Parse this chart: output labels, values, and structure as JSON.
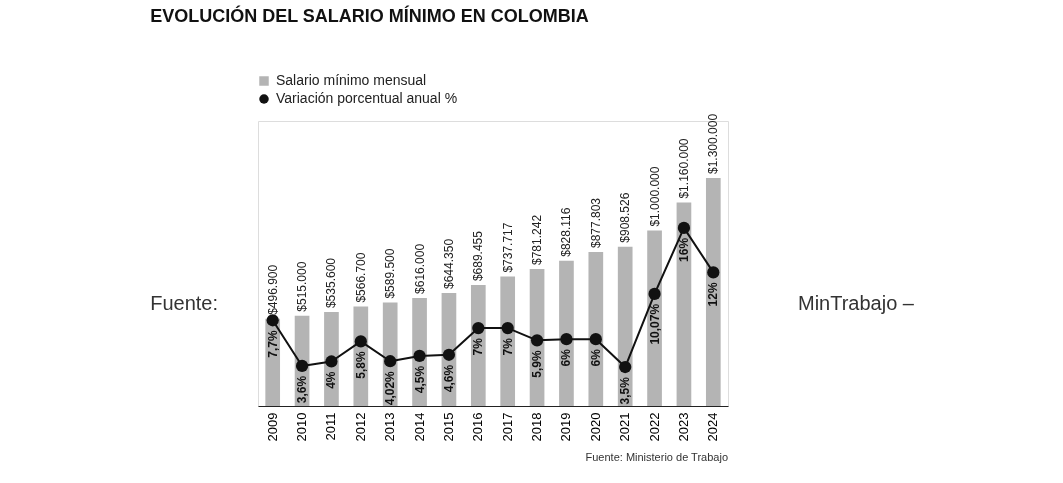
{
  "chart_data": {
    "type": "bar",
    "title": "EVOLUCIÓN DEL SALARIO MÍNIMO EN COLOMBIA",
    "categories": [
      "2009",
      "2010",
      "2011",
      "2012",
      "2013",
      "2014",
      "2015",
      "2016",
      "2017",
      "2018",
      "2019",
      "2020",
      "2021",
      "2022",
      "2023",
      "2024"
    ],
    "series": [
      {
        "name": "Salario mínimo mensual",
        "color": "#b4b4b4",
        "values": [
          496900,
          515000,
          535600,
          566700,
          589500,
          616000,
          644350,
          689455,
          737717,
          781242,
          828116,
          877803,
          908526,
          1000000,
          1160000,
          1300000
        ],
        "value_labels": [
          "$496.900",
          "$515.000",
          "$535.600",
          "$566.700",
          "$589.500",
          "$616.000",
          "$644.350",
          "$689.455",
          "$737.717",
          "$781.242",
          "$828.116",
          "$877.803",
          "$908.526",
          "$1.000.000",
          "$1.160.000",
          "$1.300.000"
        ]
      },
      {
        "name": "Variación porcentual anual %",
        "type": "line",
        "axis": "y2",
        "color": "#111111",
        "marker": "circle",
        "values": [
          7.7,
          3.6,
          4,
          5.8,
          4.02,
          4.5,
          4.6,
          7,
          7,
          5.9,
          6,
          6,
          3.5,
          10.07,
          16,
          12
        ],
        "value_labels": [
          "7,7%",
          "3,6%",
          "4%",
          "5,8%",
          "4,02%",
          "4,5%",
          "4,6%",
          "7%",
          "7%",
          "5,9%",
          "6%",
          "6%",
          "3,5%",
          "10,07%",
          "16%",
          "12%"
        ]
      }
    ],
    "legend": "top left",
    "tick_labels": "x",
    "annotations": [
      "Fuente: Ministerio de Trabajo",
      "Fuente:",
      "MinTrabajo –"
    ]
  }
}
